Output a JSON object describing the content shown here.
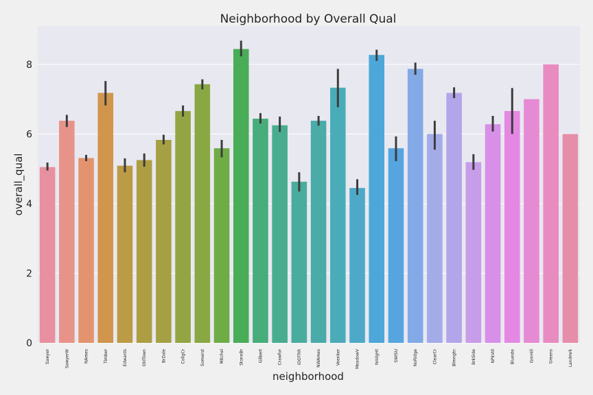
{
  "chart_data": {
    "type": "bar",
    "title": "Neighborhood by Overall Qual",
    "xlabel": "neighborhood",
    "ylabel": "overall_qual",
    "ylim": [
      0,
      9.1
    ],
    "yticks": [
      0,
      2,
      4,
      6,
      8
    ],
    "grid": true,
    "categories": [
      "Sawyer",
      "SawyerW",
      "NAmes",
      "Timber",
      "Edwards",
      "OldTown",
      "BrDale",
      "CollgCr",
      "Somerst",
      "Mitchel",
      "StoneBr",
      "Gilbert",
      "Crawfor",
      "IDOTRR",
      "NWAmes",
      "Veenker",
      "MeadowV",
      "NridgHt",
      "SWISU",
      "NoRidge",
      "ClearCr",
      "Blmngtn",
      "BrkSide",
      "NPkVill",
      "Blueste",
      "GrnHill",
      "Greens",
      "Landmrk"
    ],
    "values": [
      5.05,
      6.38,
      5.31,
      7.18,
      5.09,
      5.25,
      5.83,
      6.66,
      7.43,
      5.59,
      8.44,
      6.44,
      6.25,
      4.63,
      6.38,
      7.33,
      4.45,
      8.27,
      5.59,
      7.87,
      6.0,
      7.18,
      5.19,
      6.28,
      6.66,
      7.0,
      8.0,
      6.0
    ],
    "error_low": [
      4.95,
      6.2,
      5.22,
      6.82,
      4.9,
      5.06,
      5.7,
      6.5,
      7.28,
      5.33,
      8.23,
      6.3,
      6.06,
      4.35,
      6.24,
      6.77,
      4.25,
      8.1,
      5.22,
      7.7,
      5.55,
      7.03,
      4.97,
      6.07,
      6.0,
      7.0,
      8.0,
      6.0
    ],
    "error_high": [
      5.18,
      6.55,
      5.4,
      7.52,
      5.3,
      5.44,
      5.98,
      6.82,
      7.57,
      5.83,
      8.68,
      6.6,
      6.5,
      4.9,
      6.52,
      7.87,
      4.7,
      8.42,
      5.93,
      8.05,
      6.38,
      7.34,
      5.42,
      6.52,
      7.32,
      7.0,
      8.0,
      6.0
    ],
    "colors": [
      "#e8909f",
      "#e8938a",
      "#e3946f",
      "#d1954c",
      "#bb9b45",
      "#ad9e43",
      "#a4a043",
      "#93a543",
      "#89a844",
      "#6fac46",
      "#49ad58",
      "#47ad7a",
      "#48ad8f",
      "#4aac9c",
      "#4aaba8",
      "#4bacb9",
      "#4da9c7",
      "#4da7d8",
      "#56a5e0",
      "#83a9e6",
      "#a3abe8",
      "#b3a5ea",
      "#c79ce8",
      "#d78fe7",
      "#e488e3",
      "#e58ad3",
      "#e88bc1",
      "#e68ea9"
    ],
    "errorbar_color": "#3c3c3c"
  }
}
